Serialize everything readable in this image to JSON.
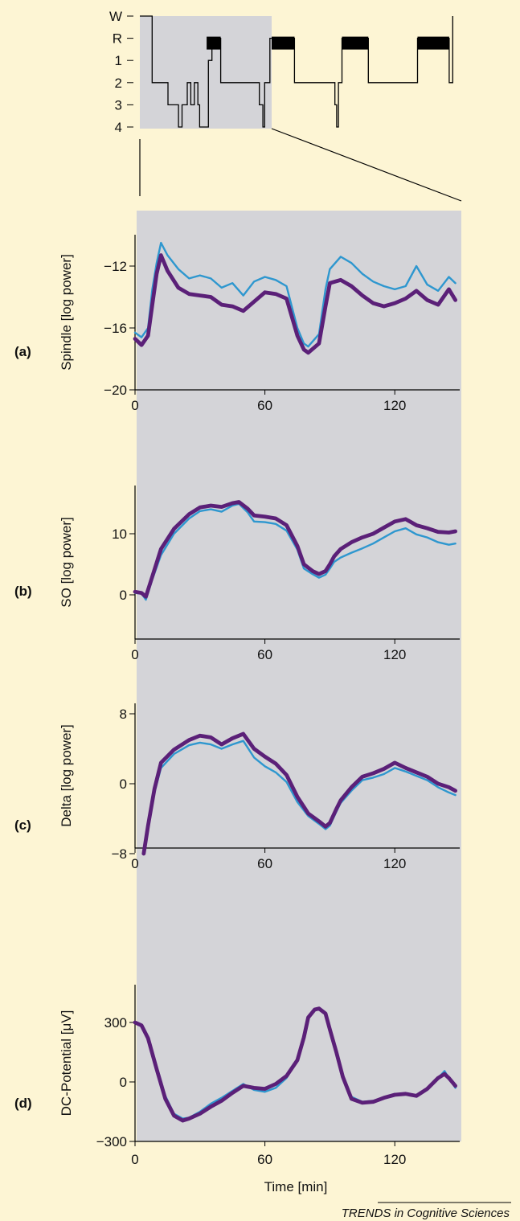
{
  "colors": {
    "background": "#fdf5d4",
    "panel_shade": "#d4d4d8",
    "line_a": "#2e97cf",
    "line_b": "#5b2078",
    "hypnogram": "#000000"
  },
  "credit": "TRENDS in Cognitive Sciences",
  "chart_data": [
    {
      "type": "line",
      "id": "hypnogram",
      "y_categories": [
        "W",
        "R",
        "1",
        "2",
        "3",
        "4"
      ],
      "x_range": [
        0,
        182
      ],
      "shaded_x_range": [
        0,
        75
      ],
      "rem_periods": [
        [
          38,
          46
        ],
        [
          75,
          88
        ],
        [
          115,
          130
        ],
        [
          158,
          176
        ]
      ],
      "steps": [
        [
          0,
          0
        ],
        [
          7,
          0
        ],
        [
          7,
          3
        ],
        [
          16,
          3
        ],
        [
          16,
          4
        ],
        [
          22,
          4
        ],
        [
          22,
          5
        ],
        [
          24,
          5
        ],
        [
          24,
          4
        ],
        [
          27,
          4
        ],
        [
          27,
          3
        ],
        [
          29,
          3
        ],
        [
          29,
          4
        ],
        [
          31,
          4
        ],
        [
          31,
          3
        ],
        [
          33,
          3
        ],
        [
          33,
          4
        ],
        [
          34,
          4
        ],
        [
          34,
          5
        ],
        [
          39,
          5
        ],
        [
          39,
          2
        ],
        [
          41,
          2
        ],
        [
          41,
          1
        ],
        [
          46,
          1
        ],
        [
          46,
          3
        ],
        [
          68,
          3
        ],
        [
          68,
          4
        ],
        [
          70,
          4
        ],
        [
          70,
          5
        ],
        [
          71,
          5
        ],
        [
          71,
          3
        ],
        [
          74,
          3
        ],
        [
          74,
          1
        ],
        [
          88,
          1
        ],
        [
          88,
          3
        ],
        [
          111,
          3
        ],
        [
          111,
          4
        ],
        [
          112,
          4
        ],
        [
          112,
          5
        ],
        [
          113,
          5
        ],
        [
          113,
          3
        ],
        [
          115,
          3
        ],
        [
          115,
          1
        ],
        [
          130,
          1
        ],
        [
          130,
          3
        ],
        [
          158,
          3
        ],
        [
          158,
          1
        ],
        [
          176,
          1
        ],
        [
          176,
          3
        ],
        [
          178,
          3
        ],
        [
          178,
          0
        ]
      ]
    },
    {
      "type": "line",
      "id": "spindle",
      "panel_label": "(a)",
      "ylabel": "Spindle [log power]",
      "xlabel": "",
      "xticks": [
        0,
        60,
        120
      ],
      "yticks": [
        -12,
        -16,
        -20
      ],
      "xlim": [
        0,
        150
      ],
      "ylim": [
        -20,
        -9
      ],
      "series": [
        {
          "x": [
            0,
            3,
            6,
            8,
            10,
            12,
            15,
            20,
            25,
            30,
            35,
            40,
            45,
            50,
            55,
            60,
            65,
            70,
            75,
            78,
            80,
            85,
            88,
            90,
            95,
            100,
            105,
            110,
            115,
            120,
            125,
            130,
            135,
            140,
            145,
            148
          ],
          "values": [
            -16.3,
            -16.6,
            -16.0,
            -13.5,
            -11.8,
            -10.5,
            -11.3,
            -12.2,
            -12.8,
            -12.6,
            -12.8,
            -13.4,
            -13.1,
            -13.9,
            -13.0,
            -12.7,
            -12.9,
            -13.3,
            -16.0,
            -17.0,
            -17.2,
            -16.4,
            -13.5,
            -12.2,
            -11.4,
            -11.8,
            -12.5,
            -13.0,
            -13.3,
            -13.5,
            -13.3,
            -12.0,
            -13.2,
            -13.6,
            -12.7,
            -13.1
          ]
        },
        {
          "x": [
            0,
            3,
            6,
            8,
            10,
            12,
            15,
            20,
            25,
            30,
            35,
            40,
            45,
            50,
            55,
            60,
            65,
            70,
            75,
            78,
            80,
            85,
            88,
            90,
            95,
            100,
            105,
            110,
            115,
            120,
            125,
            130,
            135,
            140,
            145,
            148
          ],
          "values": [
            -16.7,
            -17.1,
            -16.5,
            -14.5,
            -12.5,
            -11.3,
            -12.3,
            -13.4,
            -13.8,
            -13.9,
            -14.0,
            -14.5,
            -14.6,
            -14.9,
            -14.3,
            -13.7,
            -13.8,
            -14.1,
            -16.5,
            -17.4,
            -17.6,
            -17.0,
            -14.6,
            -13.1,
            -12.9,
            -13.3,
            -13.9,
            -14.4,
            -14.6,
            -14.4,
            -14.1,
            -13.6,
            -14.2,
            -14.5,
            -13.5,
            -14.2
          ]
        }
      ]
    },
    {
      "type": "line",
      "id": "so",
      "panel_label": "(b)",
      "ylabel": "SO [log power]",
      "xlabel": "",
      "xticks": [
        0,
        60,
        120
      ],
      "yticks": [
        10,
        0
      ],
      "xlim": [
        0,
        150
      ],
      "ylim": [
        -3,
        16
      ],
      "series": [
        {
          "x": [
            0,
            3,
            5,
            8,
            12,
            18,
            25,
            30,
            35,
            40,
            45,
            48,
            52,
            55,
            60,
            65,
            70,
            75,
            78,
            82,
            85,
            88,
            90,
            92,
            95,
            100,
            105,
            110,
            115,
            120,
            125,
            130,
            135,
            140,
            145,
            148
          ],
          "values": [
            0.3,
            0.2,
            -0.8,
            2.5,
            6.5,
            10.0,
            12.5,
            13.7,
            14.0,
            13.6,
            14.6,
            14.9,
            13.5,
            12.0,
            11.9,
            11.6,
            10.5,
            7.4,
            4.3,
            3.4,
            2.8,
            3.3,
            4.3,
            5.4,
            6.1,
            6.9,
            7.6,
            8.4,
            9.4,
            10.4,
            10.9,
            9.9,
            9.4,
            8.6,
            8.2,
            8.4
          ]
        },
        {
          "x": [
            0,
            3,
            5,
            8,
            12,
            18,
            25,
            30,
            35,
            40,
            45,
            48,
            52,
            55,
            60,
            65,
            70,
            75,
            78,
            82,
            85,
            88,
            90,
            92,
            95,
            100,
            105,
            110,
            115,
            120,
            125,
            130,
            135,
            140,
            145,
            148
          ],
          "values": [
            0.5,
            0.3,
            -0.3,
            3.0,
            7.5,
            10.8,
            13.2,
            14.3,
            14.6,
            14.4,
            15.0,
            15.2,
            14.1,
            13.0,
            12.8,
            12.5,
            11.4,
            8.0,
            5.0,
            3.9,
            3.4,
            3.9,
            5.0,
            6.3,
            7.5,
            8.6,
            9.4,
            10.0,
            11.0,
            12.0,
            12.4,
            11.4,
            10.9,
            10.3,
            10.2,
            10.4
          ]
        }
      ]
    },
    {
      "type": "line",
      "id": "delta",
      "panel_label": "(c)",
      "ylabel": "Delta [log power]",
      "xlabel": "",
      "xticks": [
        0,
        60,
        120
      ],
      "yticks": [
        8,
        0,
        -8
      ],
      "xlim": [
        0,
        150
      ],
      "ylim": [
        -8,
        10
      ],
      "series": [
        {
          "x": [
            4,
            6,
            9,
            12,
            18,
            25,
            30,
            35,
            40,
            45,
            50,
            55,
            60,
            65,
            70,
            75,
            80,
            85,
            88,
            90,
            93,
            95,
            100,
            105,
            110,
            115,
            120,
            125,
            130,
            135,
            140,
            145,
            148
          ],
          "values": [
            -7.5,
            -4.5,
            -1.0,
            1.8,
            3.4,
            4.4,
            4.7,
            4.5,
            4.0,
            4.5,
            4.9,
            3.0,
            2.0,
            1.3,
            0.2,
            -2.1,
            -3.7,
            -4.6,
            -5.2,
            -4.8,
            -3.2,
            -2.2,
            -0.8,
            0.4,
            0.7,
            1.1,
            1.8,
            1.4,
            0.9,
            0.4,
            -0.4,
            -1.0,
            -1.3
          ]
        },
        {
          "x": [
            4,
            6,
            9,
            12,
            18,
            25,
            30,
            35,
            40,
            45,
            50,
            55,
            60,
            65,
            70,
            75,
            80,
            85,
            88,
            90,
            93,
            95,
            100,
            105,
            110,
            115,
            120,
            125,
            130,
            135,
            140,
            145,
            148
          ],
          "values": [
            -8.0,
            -4.8,
            -0.6,
            2.4,
            3.9,
            5.0,
            5.5,
            5.3,
            4.5,
            5.2,
            5.7,
            4.0,
            3.1,
            2.3,
            1.0,
            -1.5,
            -3.4,
            -4.3,
            -4.9,
            -4.5,
            -2.9,
            -1.9,
            -0.4,
            0.8,
            1.2,
            1.7,
            2.4,
            1.8,
            1.3,
            0.8,
            0.0,
            -0.4,
            -0.8
          ]
        }
      ]
    },
    {
      "type": "line",
      "id": "dc",
      "panel_label": "(d)",
      "ylabel": "DC-Potential [μV]",
      "xlabel": "Time [min]",
      "xticks": [
        0,
        60,
        120
      ],
      "yticks": [
        300,
        0,
        -300
      ],
      "xlim": [
        0,
        150
      ],
      "ylim": [
        -300,
        480
      ],
      "series": [
        {
          "x": [
            0,
            3,
            6,
            10,
            14,
            18,
            22,
            25,
            30,
            35,
            40,
            45,
            50,
            55,
            60,
            65,
            70,
            75,
            78,
            80,
            83,
            85,
            88,
            90,
            93,
            96,
            100,
            105,
            110,
            115,
            120,
            125,
            130,
            135,
            140,
            143,
            145,
            148
          ],
          "values": [
            300,
            290,
            230,
            80,
            -70,
            -160,
            -185,
            -180,
            -150,
            -110,
            -80,
            -45,
            -10,
            -40,
            -50,
            -30,
            20,
            110,
            220,
            320,
            360,
            370,
            340,
            260,
            140,
            20,
            -75,
            -100,
            -95,
            -80,
            -60,
            -60,
            -70,
            -30,
            20,
            55,
            20,
            -30
          ]
        },
        {
          "x": [
            0,
            3,
            6,
            10,
            14,
            18,
            22,
            25,
            30,
            35,
            40,
            45,
            50,
            55,
            60,
            65,
            70,
            75,
            78,
            80,
            83,
            85,
            88,
            90,
            93,
            96,
            100,
            105,
            110,
            115,
            120,
            125,
            130,
            135,
            140,
            143,
            145,
            148
          ],
          "values": [
            300,
            285,
            220,
            65,
            -85,
            -170,
            -195,
            -185,
            -160,
            -125,
            -95,
            -55,
            -20,
            -30,
            -35,
            -10,
            30,
            110,
            225,
            325,
            365,
            370,
            345,
            265,
            150,
            25,
            -85,
            -105,
            -100,
            -80,
            -65,
            -60,
            -70,
            -35,
            20,
            40,
            20,
            -20
          ]
        }
      ]
    }
  ]
}
